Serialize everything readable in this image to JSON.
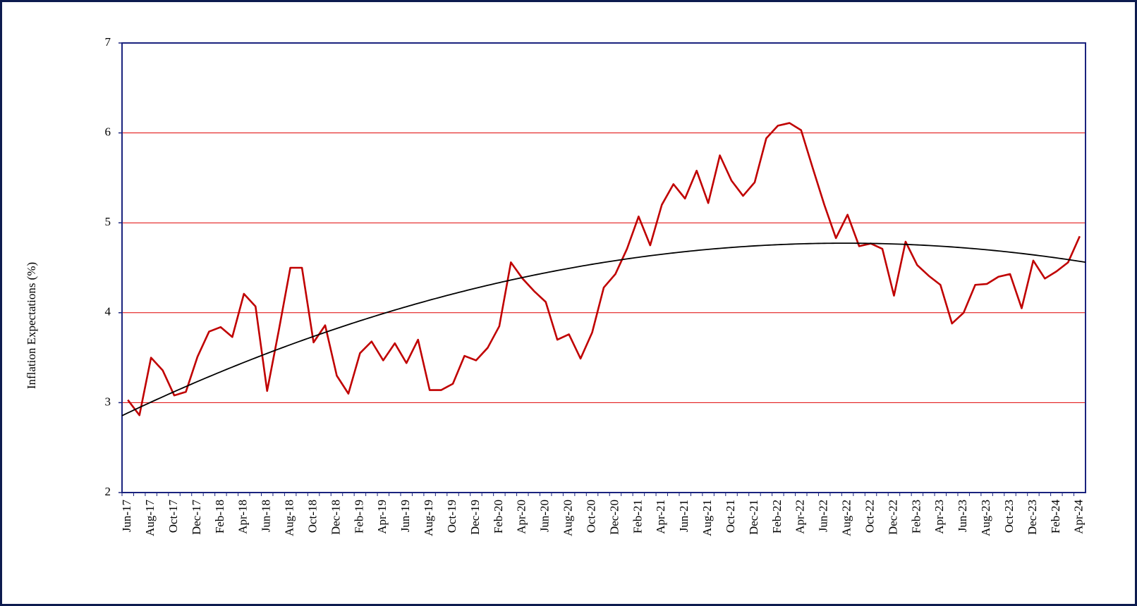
{
  "chart_data": {
    "type": "line",
    "ylabel": "Inflation  Expectations (%)",
    "categories": [
      "Jun-17",
      null,
      "Aug-17",
      null,
      "Oct-17",
      null,
      "Dec-17",
      null,
      "Feb-18",
      null,
      "Apr-18",
      null,
      "Jun-18",
      null,
      "Aug-18",
      null,
      "Oct-18",
      null,
      "Dec-18",
      null,
      "Feb-19",
      null,
      "Apr-19",
      null,
      "Jun-19",
      null,
      "Aug-19",
      null,
      "Oct-19",
      null,
      "Dec-19",
      null,
      "Feb-20",
      null,
      "Apr-20",
      null,
      "Jun-20",
      null,
      "Aug-20",
      null,
      "Oct-20",
      null,
      "Dec-20",
      null,
      "Feb-21",
      null,
      "Apr-21",
      null,
      "Jun-21",
      null,
      "Aug-21",
      null,
      "Oct-21",
      null,
      "Dec-21",
      null,
      "Feb-22",
      null,
      "Apr-22",
      null,
      "Jun-22",
      null,
      "Aug-22",
      null,
      "Oct-22",
      null,
      "Dec-22",
      null,
      "Feb-23",
      null,
      "Apr-23",
      null,
      "Jun-23",
      null,
      "Aug-23",
      null,
      "Oct-23",
      null,
      "Dec-23",
      null,
      "Feb-24",
      null,
      "Apr-24"
    ],
    "series": [
      {
        "color": "#c00000",
        "values": [
          3.03,
          2.86,
          3.5,
          3.36,
          3.08,
          3.12,
          3.51,
          3.79,
          3.84,
          3.73,
          4.21,
          4.07,
          3.13,
          3.8,
          4.5,
          4.5,
          3.67,
          3.86,
          3.3,
          3.1,
          3.55,
          3.68,
          3.47,
          3.66,
          3.44,
          3.7,
          3.14,
          3.14,
          3.21,
          3.52,
          3.47,
          3.61,
          3.85,
          4.56,
          4.38,
          4.24,
          4.12,
          3.7,
          3.76,
          3.49,
          3.78,
          4.28,
          4.43,
          4.71,
          5.07,
          4.75,
          5.2,
          5.43,
          5.27,
          5.58,
          5.22,
          5.75,
          5.47,
          5.3,
          5.45,
          5.94,
          6.08,
          6.11,
          6.03,
          5.61,
          5.2,
          4.83,
          5.09,
          4.74,
          4.77,
          4.71,
          4.19,
          4.79,
          4.53,
          4.41,
          4.31,
          3.88,
          4.0,
          4.31,
          4.32,
          4.4,
          4.43,
          4.05,
          4.58,
          4.38,
          4.46,
          4.56,
          4.85
        ]
      }
    ],
    "trendline": {
      "type": "polynomial",
      "order": 2,
      "color": "#000000"
    },
    "ylim": [
      2,
      7
    ],
    "yticks": [
      2,
      3,
      4,
      5,
      6,
      7
    ],
    "grid": true,
    "grid_color": "#e00000",
    "axis_color": "#1a237e"
  }
}
